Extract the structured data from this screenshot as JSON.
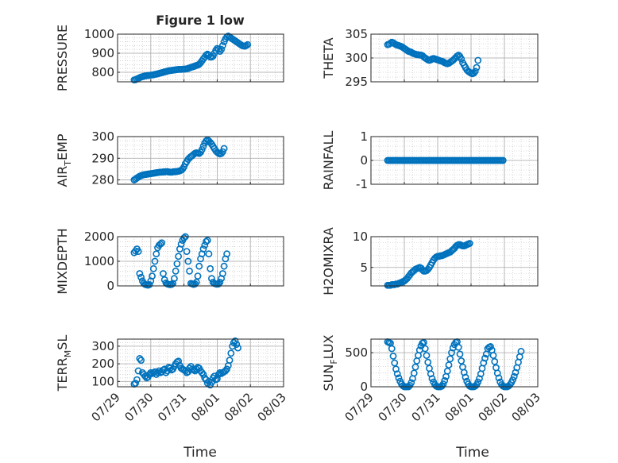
{
  "figure": {
    "title": "Figure 1 low",
    "xlabel": "Time",
    "colors": {
      "marker": "#0072BD",
      "axis": "#262626",
      "grid": "#bdbdbd",
      "background": "#ffffff"
    }
  },
  "chart_data": [
    {
      "id": "pressure",
      "type": "scatter",
      "marker": "open-circle",
      "ylabel": "PRESSURE",
      "ylim": [
        750,
        1000
      ],
      "yticks": [
        800,
        900,
        1000
      ],
      "xlim": [
        "07/29",
        "08/03"
      ],
      "xtick_labels": [
        "07/29",
        "07/30",
        "07/31",
        "08/01",
        "08/02",
        "08/03"
      ],
      "show_xtick_labels": false,
      "grid": "major+minor",
      "x_start": "07/29 12:00",
      "x_step_hours": 1,
      "values": [
        760,
        761,
        765,
        768,
        772,
        775,
        777,
        779,
        781,
        782,
        783,
        784,
        785,
        786,
        787,
        789,
        790,
        792,
        794,
        796,
        798,
        800,
        802,
        804,
        806,
        808,
        809,
        810,
        811,
        812,
        813,
        814,
        815,
        815,
        815,
        816,
        816,
        817,
        818,
        820,
        823,
        826,
        828,
        830,
        833,
        836,
        838,
        842,
        850,
        860,
        870,
        880,
        890,
        895,
        890,
        880,
        880,
        885,
        900,
        915,
        925,
        920,
        910,
        920,
        940,
        960,
        975,
        985,
        990,
        985,
        980,
        975,
        970,
        965,
        960,
        955,
        950,
        945,
        940,
        938,
        937,
        940,
        945
      ]
    },
    {
      "id": "theta",
      "type": "scatter",
      "marker": "open-circle",
      "ylabel": "THETA",
      "ylim": [
        295,
        305
      ],
      "yticks": [
        295,
        300,
        305
      ],
      "xlim": [
        "07/29",
        "08/03"
      ],
      "xtick_labels": [
        "07/29",
        "07/30",
        "07/31",
        "08/01",
        "08/02",
        "08/03"
      ],
      "show_xtick_labels": false,
      "grid": "major+minor",
      "x_start": "07/29 12:00",
      "x_step_hours": 1,
      "values": [
        302.8,
        302.9,
        303.1,
        303.3,
        303.2,
        303.0,
        302.8,
        302.7,
        302.6,
        302.5,
        302.4,
        302.2,
        302.0,
        301.8,
        301.6,
        301.4,
        301.3,
        301.2,
        301.0,
        300.9,
        300.8,
        300.7,
        300.7,
        300.6,
        300.6,
        300.5,
        300.2,
        300.0,
        299.8,
        299.6,
        299.5,
        299.6,
        299.8,
        299.9,
        299.8,
        299.7,
        299.6,
        299.5,
        299.4,
        299.3,
        299.2,
        299.0,
        298.9,
        298.8,
        298.9,
        299.1,
        299.3,
        299.5,
        299.8,
        300.1,
        300.4,
        300.6,
        300.3,
        299.8,
        299.0,
        298.5,
        298.0,
        297.5,
        297.2,
        297.0,
        296.8,
        296.7,
        296.8,
        297.2,
        298.0,
        299.5
      ]
    },
    {
      "id": "air_temp",
      "type": "scatter",
      "marker": "open-circle",
      "ylabel": "AIR",
      "ylabel_sub": "T",
      "ylabel_tail": "EMP",
      "ylim": [
        278,
        300
      ],
      "yticks": [
        280,
        290,
        300
      ],
      "xlim": [
        "07/29",
        "08/03"
      ],
      "xtick_labels": [
        "07/29",
        "07/30",
        "07/31",
        "08/01",
        "08/02",
        "08/03"
      ],
      "show_xtick_labels": false,
      "grid": "major+minor",
      "x_start": "07/29 12:00",
      "x_step_hours": 1,
      "values": [
        280.0,
        280.4,
        280.9,
        281.3,
        281.7,
        282.0,
        282.2,
        282.4,
        282.5,
        282.6,
        282.7,
        282.8,
        282.9,
        283.0,
        283.1,
        283.2,
        283.3,
        283.4,
        283.5,
        283.6,
        283.6,
        283.7,
        283.7,
        283.8,
        283.8,
        283.7,
        283.6,
        283.6,
        283.7,
        283.8,
        283.8,
        283.9,
        284.0,
        284.2,
        284.5,
        285.0,
        286.0,
        287.5,
        288.5,
        289.5,
        290.2,
        290.8,
        291.2,
        291.8,
        292.3,
        292.5,
        292.4,
        292.2,
        292.8,
        294.0,
        295.5,
        297.0,
        298.0,
        298.5,
        298.0,
        297.3,
        296.5,
        295.5,
        294.5,
        293.5,
        292.8,
        292.3,
        292.0,
        292.2,
        293.0,
        294.5
      ]
    },
    {
      "id": "rainfall",
      "type": "scatter",
      "marker": "open-circle",
      "ylabel": "RAINFALL",
      "ylim": [
        -1,
        1
      ],
      "yticks": [
        -1,
        0,
        1
      ],
      "xlim": [
        "07/29",
        "08/03"
      ],
      "xtick_labels": [
        "07/29",
        "07/30",
        "07/31",
        "08/01",
        "08/02",
        "08/03"
      ],
      "show_xtick_labels": false,
      "grid": "major+minor",
      "x_start": "07/29 12:00",
      "x_step_hours": 1,
      "constant_value": 0,
      "count": 84
    },
    {
      "id": "mixdepth",
      "type": "scatter",
      "marker": "open-circle",
      "ylabel": "MIXDEPTH",
      "ylim": [
        0,
        2000
      ],
      "yticks": [
        0,
        1000,
        2000
      ],
      "xlim": [
        "07/29",
        "08/03"
      ],
      "xtick_labels": [
        "07/29",
        "07/30",
        "07/31",
        "08/01",
        "08/02",
        "08/03"
      ],
      "show_xtick_labels": false,
      "grid": "major+minor",
      "x_start": "07/29 12:00",
      "x_step_hours": 1,
      "values": [
        1350,
        1420,
        1500,
        1400,
        500,
        350,
        200,
        100,
        60,
        40,
        30,
        50,
        200,
        400,
        700,
        1000,
        1300,
        1550,
        1650,
        1700,
        1750,
        500,
        250,
        120,
        80,
        60,
        50,
        60,
        100,
        300,
        600,
        900,
        1200,
        1500,
        1700,
        1850,
        1950,
        2000,
        1400,
        1000,
        600,
        100,
        80,
        60,
        80,
        150,
        400,
        800,
        1100,
        1300,
        1500,
        1650,
        1800,
        1850,
        1300,
        700,
        300,
        150,
        100,
        80,
        70,
        80,
        150,
        300,
        500,
        800,
        1100,
        1300
      ]
    },
    {
      "id": "h2omixra",
      "type": "scatter",
      "marker": "open-circle",
      "ylabel": "H2OMIXRA",
      "ylim": [
        2,
        10
      ],
      "yticks": [
        5,
        10
      ],
      "xlim": [
        "07/29",
        "08/03"
      ],
      "xtick_labels": [
        "07/29",
        "07/30",
        "07/31",
        "08/01",
        "08/02",
        "08/03"
      ],
      "show_xtick_labels": false,
      "grid": "major+minor",
      "x_start": "07/29 12:00",
      "x_step_hours": 1,
      "values": [
        2.1,
        2.1,
        2.1,
        2.2,
        2.2,
        2.2,
        2.3,
        2.3,
        2.4,
        2.5,
        2.6,
        2.7,
        2.8,
        3.0,
        3.2,
        3.5,
        3.8,
        4.1,
        4.3,
        4.5,
        4.7,
        4.8,
        4.9,
        5.0,
        4.9,
        4.6,
        4.4,
        4.4,
        4.5,
        4.7,
        5.0,
        5.4,
        5.8,
        6.2,
        6.5,
        6.7,
        6.8,
        6.8,
        6.9,
        6.9,
        7.0,
        7.1,
        7.2,
        7.3,
        7.4,
        7.5,
        7.7,
        7.9,
        8.1,
        8.4,
        8.6,
        8.7,
        8.7,
        8.6,
        8.5,
        8.5,
        8.6,
        8.7,
        8.8,
        8.9
      ]
    },
    {
      "id": "terr_msl",
      "type": "scatter",
      "marker": "open-circle",
      "ylabel": "TERR",
      "ylabel_sub": "M",
      "ylabel_tail": "SL",
      "ylim": [
        70,
        340
      ],
      "yticks": [
        100,
        200,
        300
      ],
      "xlim": [
        "07/29",
        "08/03"
      ],
      "xtick_labels": [
        "07/29",
        "07/30",
        "07/31",
        "08/01",
        "08/02",
        "08/03"
      ],
      "show_xtick_labels": true,
      "grid": "major+minor",
      "x_start": "07/29 12:00",
      "x_step_hours": 1,
      "values": [
        85,
        90,
        110,
        160,
        230,
        220,
        150,
        140,
        130,
        120,
        125,
        140,
        150,
        145,
        150,
        155,
        140,
        150,
        160,
        150,
        155,
        165,
        170,
        150,
        160,
        180,
        175,
        165,
        170,
        185,
        200,
        210,
        215,
        190,
        175,
        170,
        165,
        160,
        150,
        155,
        175,
        185,
        170,
        165,
        160,
        170,
        180,
        175,
        160,
        150,
        140,
        120,
        110,
        90,
        100,
        80,
        95,
        120,
        130,
        110,
        115,
        140,
        150,
        145,
        150,
        155,
        160,
        170,
        190,
        220,
        260,
        300,
        320,
        330,
        310,
        290
      ]
    },
    {
      "id": "sun_flux",
      "type": "scatter",
      "marker": "open-circle",
      "ylabel": "SUN",
      "ylabel_sub": "F",
      "ylabel_tail": "LUX",
      "ylim": [
        0,
        700
      ],
      "yticks": [
        0,
        500
      ],
      "xlim": [
        "07/29",
        "08/03"
      ],
      "xtick_labels": [
        "07/29",
        "07/30",
        "07/31",
        "08/01",
        "08/02",
        "08/03"
      ],
      "show_xtick_labels": true,
      "grid": "major+minor",
      "x_start": "07/29 12:00",
      "x_step_hours": 1,
      "values": [
        660,
        650,
        640,
        560,
        450,
        350,
        260,
        190,
        130,
        80,
        40,
        15,
        0,
        0,
        0,
        0,
        20,
        60,
        120,
        200,
        290,
        380,
        460,
        540,
        600,
        640,
        650,
        560,
        460,
        360,
        270,
        190,
        120,
        70,
        30,
        10,
        0,
        0,
        0,
        10,
        40,
        90,
        150,
        230,
        320,
        410,
        500,
        570,
        620,
        650,
        660,
        580,
        480,
        380,
        290,
        210,
        140,
        80,
        40,
        10,
        0,
        0,
        0,
        10,
        30,
        70,
        120,
        190,
        270,
        350,
        420,
        480,
        560,
        580,
        590,
        540,
        460,
        370,
        280,
        200,
        130,
        70,
        30,
        10,
        0,
        0,
        0,
        10,
        30,
        60,
        100,
        150,
        210,
        280,
        360,
        440,
        520
      ]
    }
  ]
}
